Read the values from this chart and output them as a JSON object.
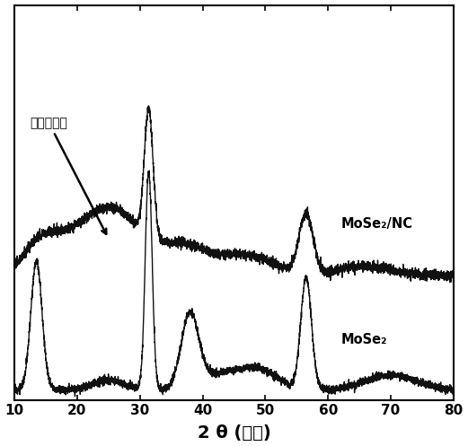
{
  "xlabel": "2 θ (角度)",
  "xlim": [
    10,
    80
  ],
  "xticks": [
    10,
    20,
    30,
    40,
    50,
    60,
    70,
    80
  ],
  "label_mose2_nc": "MoSe₂/NC",
  "label_mose2": "MoSe₂",
  "annotation_text": "半石墨化碳",
  "background_color": "#ffffff",
  "line_color": "#111111"
}
